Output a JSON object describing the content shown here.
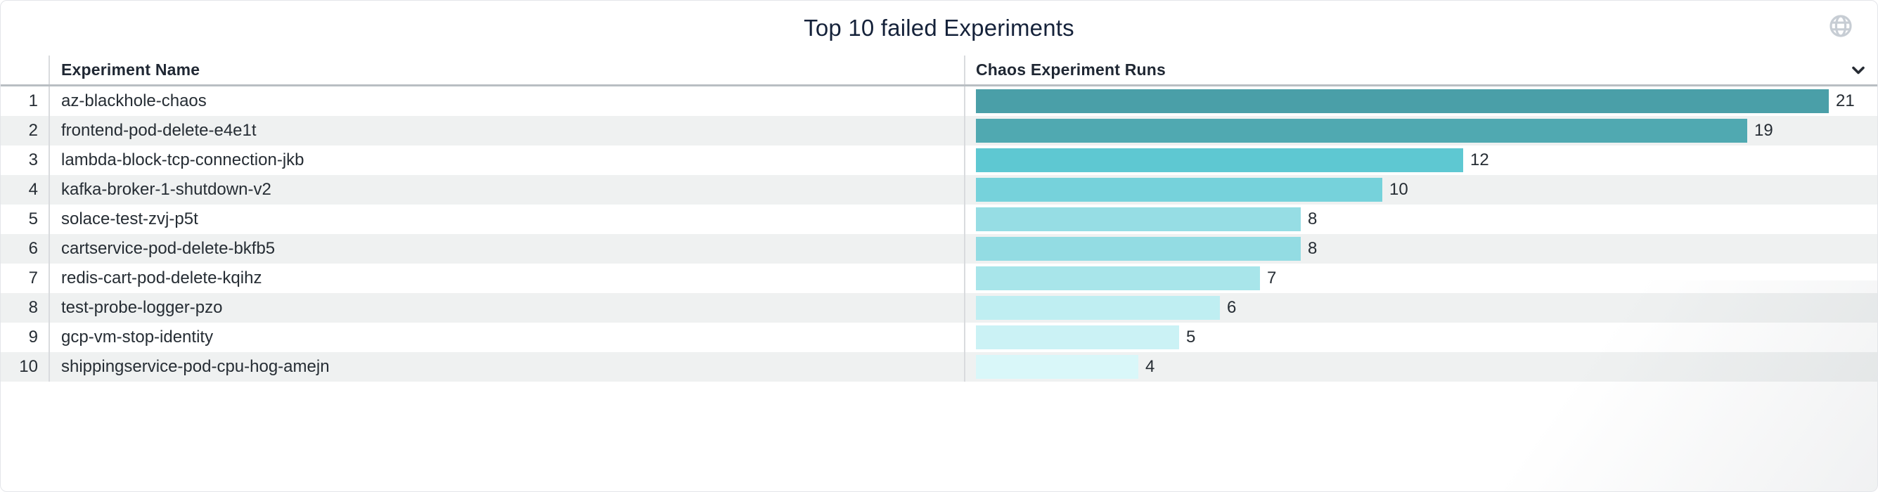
{
  "widget": {
    "title": "Top 10 failed Experiments"
  },
  "icons": {
    "top_right": "globe-icon",
    "column_menu": "chevron-down-icon"
  },
  "table": {
    "columns": [
      "Experiment Name",
      "Chaos Experiment Runs"
    ],
    "rows": [
      {
        "rank": "1",
        "name": "az-blackhole-chaos",
        "runs": 21,
        "bar_color": "#4a9fa8"
      },
      {
        "rank": "2",
        "name": "frontend-pod-delete-e4e1t",
        "runs": 19,
        "bar_color": "#50a9b1"
      },
      {
        "rank": "3",
        "name": "lambda-block-tcp-connection-jkb",
        "runs": 12,
        "bar_color": "#5ec8d2"
      },
      {
        "rank": "4",
        "name": "kafka-broker-1-shutdown-v2",
        "runs": 10,
        "bar_color": "#76d2db"
      },
      {
        "rank": "5",
        "name": "solace-test-zvj-p5t",
        "runs": 8,
        "bar_color": "#96dde4"
      },
      {
        "rank": "6",
        "name": "cartservice-pod-delete-bkfb5",
        "runs": 8,
        "bar_color": "#93dce3"
      },
      {
        "rank": "7",
        "name": "redis-cart-pod-delete-kqihz",
        "runs": 7,
        "bar_color": "#a8e5ea"
      },
      {
        "rank": "8",
        "name": "test-probe-logger-pzo",
        "runs": 6,
        "bar_color": "#bfeef2"
      },
      {
        "rank": "9",
        "name": "gcp-vm-stop-identity",
        "runs": 5,
        "bar_color": "#cbf2f5"
      },
      {
        "rank": "10",
        "name": "shippingservice-pod-cpu-hog-amejn",
        "runs": 4,
        "bar_color": "#d9f7f9"
      }
    ]
  },
  "chart_data": {
    "type": "bar",
    "orientation": "horizontal",
    "title": "Top 10 failed Experiments",
    "categories": [
      "az-blackhole-chaos",
      "frontend-pod-delete-e4e1t",
      "lambda-block-tcp-connection-jkb",
      "kafka-broker-1-shutdown-v2",
      "solace-test-zvj-p5t",
      "cartservice-pod-delete-bkfb5",
      "redis-cart-pod-delete-kqihz",
      "test-probe-logger-pzo",
      "gcp-vm-stop-identity",
      "shippingservice-pod-cpu-hog-amejn"
    ],
    "values": [
      21,
      19,
      12,
      10,
      8,
      8,
      7,
      6,
      5,
      4
    ],
    "xlabel": "Chaos Experiment Runs",
    "ylabel": "Experiment Name",
    "xlim": [
      0,
      22
    ],
    "data_labels": true,
    "legend": false,
    "grid": false,
    "color_scale": "sequential teal, darkest = highest value"
  },
  "colors": {
    "stripe": "#eff1f1",
    "divider": "#d9dbde",
    "header_border": "#b9bec3",
    "card_border": "#e3e5e9",
    "title_text": "#15223a",
    "header_text": "#1f2733",
    "body_text": "#262d34",
    "globe_icon": "#c7cdd4",
    "chevron_icon": "#262b33"
  }
}
